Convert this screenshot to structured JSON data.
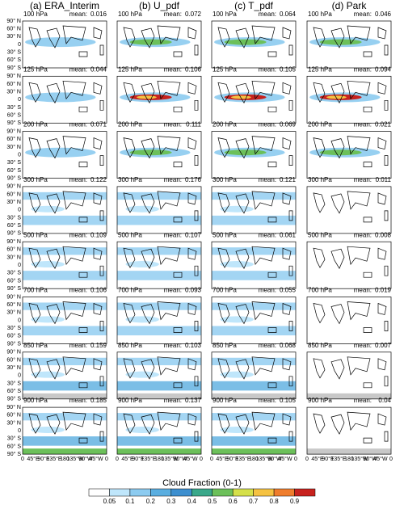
{
  "columns": [
    "(a) ERA_Interim",
    "(b) U_pdf",
    "(c) T_pdf",
    "(d) Park"
  ],
  "mean_label": "mean:",
  "rows": [
    {
      "level": "100 hPa",
      "means": [
        0.016,
        0.072,
        0.064,
        0.046
      ]
    },
    {
      "level": "125 hPa",
      "means": [
        0.044,
        0.106,
        0.105,
        0.094
      ]
    },
    {
      "level": "200 hPa",
      "means": [
        0.071,
        0.111,
        0.069,
        0.021
      ]
    },
    {
      "level": "300 hPa",
      "means": [
        0.122,
        0.176,
        0.121,
        0.011
      ]
    },
    {
      "level": "500 hPa",
      "means": [
        0.109,
        0.107,
        0.061,
        0.008
      ]
    },
    {
      "level": "700 hPa",
      "means": [
        0.106,
        0.093,
        0.055,
        0.019
      ]
    },
    {
      "level": "850 hPa",
      "means": [
        0.159,
        0.103,
        0.068,
        0.007
      ]
    },
    {
      "level": "900 hPa",
      "means": [
        0.185,
        0.137,
        0.105,
        0.04
      ]
    }
  ],
  "lat_labels": [
    "90° N",
    "60° N",
    "30° N",
    "0",
    "30° S",
    "60° S",
    "90° S"
  ],
  "lon_labels": [
    "0",
    "45°E",
    "90°E",
    "135°E",
    "180",
    "135°W",
    "90°W",
    "45°W",
    "0"
  ],
  "colorbar": {
    "title": "Cloud Fraction (0-1)",
    "labels": [
      "0.05",
      "0.1",
      "0.2",
      "0.3",
      "0.4",
      "0.5",
      "0.6",
      "0.7",
      "0.8",
      "0.9"
    ],
    "colors": [
      "#ffffff",
      "#bfe6fb",
      "#8ccbf0",
      "#5aaee0",
      "#3d8fcf",
      "#3aa88a",
      "#6cc05a",
      "#d5e04a",
      "#f5c242",
      "#ef7d2d",
      "#c7221e"
    ]
  }
}
